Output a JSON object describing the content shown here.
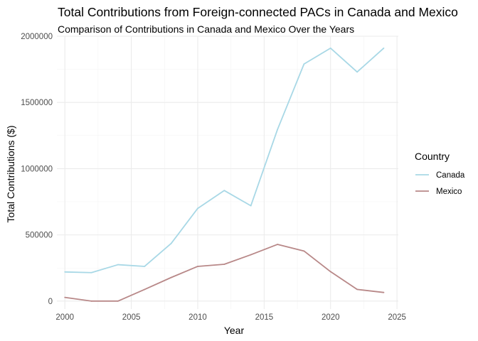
{
  "chart_data": {
    "type": "line",
    "title": "Total Contributions from Foreign-connected PACs in Canada and Mexico",
    "subtitle": "Comparison of Contributions in Canada and Mexico Over the Years",
    "xlabel": "Year",
    "ylabel": "Total Contributions ($)",
    "xlim": [
      1999.4,
      2025.1
    ],
    "ylim": [
      -60000,
      2000000
    ],
    "x_ticks": [
      2000,
      2005,
      2010,
      2015,
      2020,
      2025
    ],
    "y_ticks": [
      0,
      500000,
      1000000,
      1500000,
      2000000
    ],
    "x_tick_labels": [
      "2000",
      "2005",
      "2010",
      "2015",
      "2020",
      "2025"
    ],
    "y_tick_labels": [
      "0",
      "500000",
      "1000000",
      "1500000",
      "2000000"
    ],
    "grid": true,
    "legend": {
      "title": "Country",
      "placement": "right"
    },
    "x": [
      2000,
      2002,
      2004,
      2006,
      2008,
      2010,
      2012,
      2014,
      2016,
      2018,
      2020,
      2022,
      2024
    ],
    "series": [
      {
        "name": "Canada",
        "color": "#a8d8e6",
        "values": [
          220000,
          215000,
          275000,
          262000,
          435000,
          700000,
          835000,
          720000,
          1295000,
          1790000,
          1910000,
          1730000,
          1910000
        ]
      },
      {
        "name": "Mexico",
        "color": "#b88888",
        "values": [
          28000,
          0,
          0,
          88000,
          178000,
          262000,
          278000,
          350000,
          428000,
          378000,
          222000,
          88000,
          65000
        ]
      }
    ]
  }
}
